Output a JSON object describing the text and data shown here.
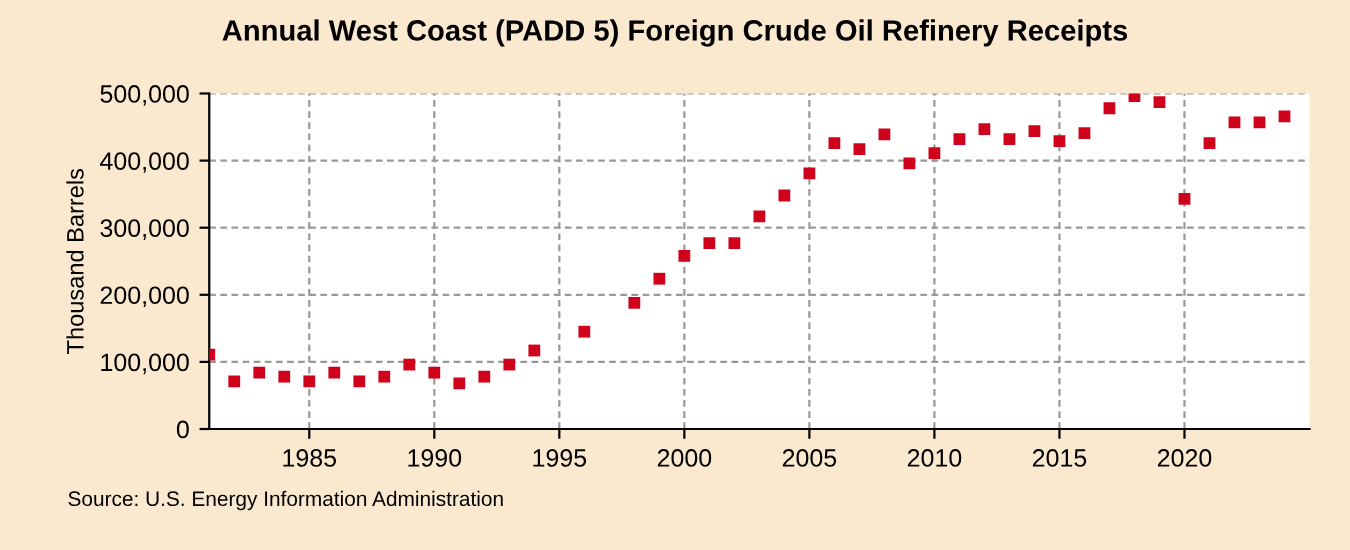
{
  "chart_data": {
    "type": "scatter",
    "title": "Annual West Coast (PADD 5) Foreign Crude Oil Refinery Receipts",
    "ylabel": "Thousand Barrels",
    "x": [
      1981,
      1982,
      1983,
      1984,
      1985,
      1986,
      1987,
      1988,
      1989,
      1990,
      1991,
      1992,
      1993,
      1994,
      1996,
      1998,
      1999,
      2000,
      2001,
      2002,
      2003,
      2004,
      2005,
      2006,
      2007,
      2008,
      2009,
      2010,
      2011,
      2012,
      2013,
      2014,
      2015,
      2016,
      2017,
      2018,
      2019,
      2020,
      2021,
      2022,
      2023,
      2024
    ],
    "series": [
      {
        "color": "#d0021b",
        "values": [
          111000,
          71000,
          84000,
          78000,
          71000,
          84000,
          71000,
          78000,
          96000,
          84000,
          68000,
          78000,
          96000,
          117000,
          145000,
          188000,
          224000,
          258000,
          277000,
          277000,
          317000,
          348000,
          381000,
          426000,
          417000,
          439000,
          396000,
          411000,
          432000,
          447000,
          432000,
          444000,
          429000,
          441000,
          478000,
          496000,
          487000,
          343000,
          426000,
          457000,
          457000,
          466000
        ]
      }
    ],
    "xlim": [
      1981,
      2025
    ],
    "xticks": [
      1985,
      1990,
      1995,
      2000,
      2005,
      2010,
      2015,
      2020
    ],
    "ylim": [
      0,
      500000
    ],
    "yticks": [
      {
        "value": 0,
        "label": "0"
      },
      {
        "value": 100000,
        "label": "100,000"
      },
      {
        "value": 200000,
        "label": "200,000"
      },
      {
        "value": 300000,
        "label": "300,000"
      },
      {
        "value": 400000,
        "label": "400,000"
      },
      {
        "value": 500000,
        "label": "500,000"
      }
    ],
    "grid": true,
    "marker": "square",
    "annotations": [
      "Source: U.S. Energy Information Administration"
    ]
  }
}
